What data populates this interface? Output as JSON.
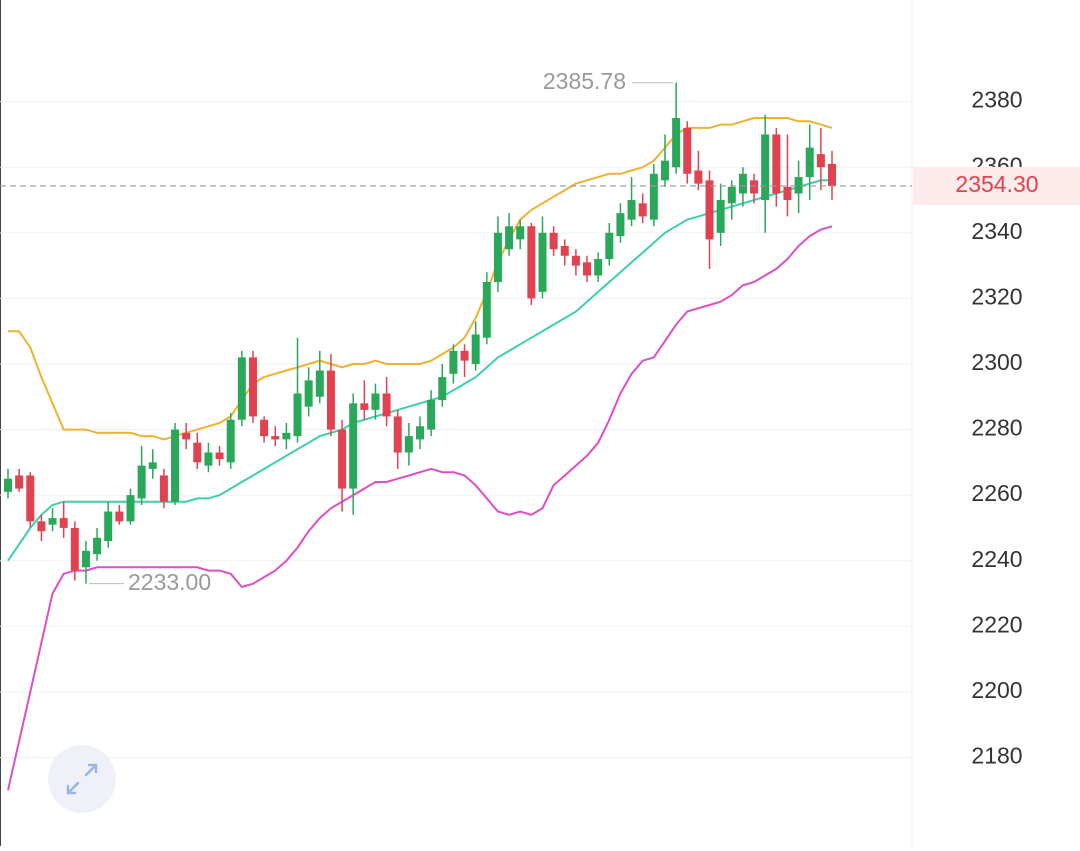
{
  "chart_data": {
    "type": "candlestick",
    "up_color": "#2aa85a",
    "down_color": "#e0434f",
    "open": [
      2261,
      2266,
      2266,
      2252,
      2251,
      2253,
      2250,
      2238,
      2242,
      2246,
      2255,
      2252,
      2259,
      2268,
      2266,
      2258,
      2279,
      2276,
      2269,
      2273,
      2270,
      2283,
      2302,
      2283,
      2278,
      2277,
      2278,
      2287,
      2290,
      2298,
      2280,
      2262,
      2288,
      2286,
      2291,
      2284,
      2273,
      2277,
      2280,
      2289,
      2297,
      2304,
      2300,
      2308,
      2325,
      2335,
      2338,
      2342,
      2322,
      2340,
      2336,
      2333,
      2331,
      2327,
      2332,
      2339,
      2344,
      2349,
      2344,
      2356,
      2360,
      2372,
      2359,
      2356,
      2340,
      2349,
      2352,
      2356,
      2350,
      2370,
      2354,
      2352,
      2357,
      2364,
      2361
    ],
    "high": [
      2268,
      2268,
      2267,
      2254,
      2256,
      2258,
      2252,
      2246,
      2250,
      2258,
      2257,
      2262,
      2275,
      2274,
      2268,
      2282,
      2282,
      2279,
      2276,
      2275,
      2285,
      2304,
      2304,
      2284,
      2281,
      2282,
      2308,
      2299,
      2304,
      2303,
      2283,
      2291,
      2295,
      2294,
      2296,
      2286,
      2282,
      2284,
      2292,
      2300,
      2306,
      2306,
      2313,
      2328,
      2345,
      2346,
      2344,
      2343,
      2345,
      2342,
      2338,
      2335,
      2333,
      2334,
      2343,
      2349,
      2357,
      2352,
      2361,
      2370,
      2385.78,
      2374,
      2365,
      2359,
      2355,
      2356,
      2360,
      2358,
      2376,
      2372,
      2370,
      2362,
      2373,
      2372,
      2365
    ],
    "low": [
      2259,
      2261,
      2250,
      2246,
      2249,
      2247,
      2234,
      2233,
      2240,
      2244,
      2251,
      2251,
      2257,
      2265,
      2256,
      2257,
      2274,
      2268,
      2267,
      2269,
      2268,
      2281,
      2282,
      2276,
      2275,
      2274,
      2276,
      2284,
      2288,
      2278,
      2255,
      2254,
      2283,
      2283,
      2281,
      2268,
      2269,
      2274,
      2278,
      2287,
      2294,
      2296,
      2298,
      2306,
      2322,
      2333,
      2335,
      2318,
      2320,
      2333,
      2330,
      2327,
      2325,
      2325,
      2330,
      2337,
      2342,
      2343,
      2342,
      2354,
      2358,
      2355,
      2353,
      2329,
      2336,
      2344,
      2348,
      2349,
      2340,
      2348,
      2345,
      2346,
      2350,
      2353,
      2350
    ],
    "close": [
      2265,
      2262,
      2252,
      2249,
      2253,
      2250,
      2237,
      2243,
      2247,
      2255,
      2252,
      2260,
      2269,
      2270,
      2258,
      2280,
      2277,
      2270,
      2273,
      2271,
      2283,
      2302,
      2284,
      2278,
      2277,
      2279,
      2291,
      2295,
      2298,
      2280,
      2262,
      2288,
      2286,
      2291,
      2284,
      2273,
      2278,
      2281,
      2289,
      2296,
      2304,
      2301,
      2309,
      2325,
      2340,
      2342,
      2342,
      2320,
      2340,
      2335,
      2333,
      2330,
      2327,
      2332,
      2340,
      2346,
      2350,
      2345,
      2358,
      2362,
      2375,
      2358,
      2355,
      2338,
      2350,
      2354,
      2358,
      2352,
      2370,
      2352,
      2350,
      2357,
      2366,
      2360,
      2354.3
    ],
    "bands": [
      {
        "color": "#efb22e",
        "values": [
          2310,
          2310,
          2305,
          2296,
          2288,
          2280,
          2280,
          2280,
          2279,
          2279,
          2279,
          2279,
          2278,
          2278,
          2277,
          2278,
          2279,
          2280,
          2281,
          2282,
          2284,
          2289,
          2294,
          2296,
          2297,
          2298,
          2299,
          2300,
          2301,
          2300,
          2299,
          2300,
          2300,
          2301,
          2300,
          2300,
          2300,
          2300,
          2301,
          2303,
          2305,
          2308,
          2314,
          2322,
          2331,
          2338,
          2344,
          2347,
          2349,
          2351,
          2353,
          2355,
          2356,
          2357,
          2358,
          2358,
          2359,
          2360,
          2362,
          2366,
          2370,
          2372,
          2372,
          2372,
          2373,
          2373,
          2374,
          2375,
          2375,
          2375,
          2375,
          2374,
          2374,
          2373,
          2372
        ]
      },
      {
        "color": "#3ccfae",
        "values": [
          2240,
          2245,
          2250,
          2254,
          2257,
          2258,
          2258,
          2258,
          2258,
          2258,
          2258,
          2258,
          2258,
          2258,
          2258,
          2258,
          2258,
          2259,
          2259,
          2260,
          2262,
          2264,
          2266,
          2268,
          2270,
          2272,
          2274,
          2276,
          2278,
          2279,
          2280,
          2282,
          2283,
          2284,
          2285,
          2286,
          2287,
          2288,
          2289,
          2290,
          2292,
          2294,
          2296,
          2299,
          2302,
          2304,
          2306,
          2308,
          2310,
          2312,
          2314,
          2316,
          2319,
          2322,
          2325,
          2328,
          2331,
          2334,
          2337,
          2340,
          2342,
          2344,
          2345,
          2346,
          2347,
          2348,
          2349,
          2350,
          2351,
          2352,
          2353,
          2354,
          2355,
          2356,
          2356
        ]
      },
      {
        "color": "#dd4fc4",
        "values": [
          2170,
          2185,
          2200,
          2215,
          2230,
          2236,
          2237,
          2237,
          2238,
          2238,
          2238,
          2238,
          2238,
          2238,
          2238,
          2238,
          2238,
          2238,
          2237,
          2237,
          2236,
          2232,
          2233,
          2235,
          2237,
          2240,
          2244,
          2249,
          2253,
          2256,
          2258,
          2260,
          2262,
          2264,
          2264,
          2265,
          2266,
          2267,
          2268,
          2267,
          2267,
          2266,
          2263,
          2259,
          2255,
          2254,
          2255,
          2254,
          2256,
          2263,
          2266,
          2269,
          2272,
          2276,
          2283,
          2291,
          2297,
          2301,
          2302,
          2307,
          2312,
          2316,
          2317,
          2318,
          2319,
          2321,
          2324,
          2325,
          2327,
          2329,
          2332,
          2336,
          2339,
          2341,
          2342
        ]
      }
    ],
    "ylim": [
      2153,
      2411
    ],
    "yticks": [
      2180,
      2200,
      2220,
      2240,
      2260,
      2280,
      2300,
      2320,
      2340,
      2360,
      2380
    ],
    "grid": true,
    "max_label": 2385.78,
    "min_label": {
      "value": 2233,
      "label": "2233.00"
    },
    "last_price": {
      "value": 2354.3,
      "label": "2354.30"
    }
  }
}
